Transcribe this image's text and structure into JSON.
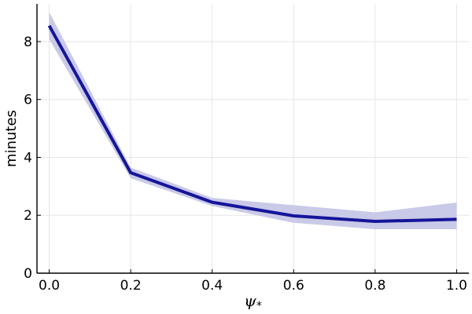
{
  "chart_data": {
    "type": "line",
    "title": "",
    "xlabel": {
      "symbol": "ψ",
      "subscript": "*"
    },
    "ylabel": "minutes",
    "xlim": [
      -0.03,
      1.03
    ],
    "ylim": [
      0,
      9.3
    ],
    "xticks": [
      0.0,
      0.2,
      0.4,
      0.6,
      0.8,
      1.0
    ],
    "xtick_labels": [
      "0.0",
      "0.2",
      "0.4",
      "0.6",
      "0.8",
      "1.0"
    ],
    "yticks": [
      0,
      2,
      4,
      6,
      8
    ],
    "ytick_labels": [
      "0",
      "2",
      "4",
      "6",
      "8"
    ],
    "grid": true,
    "legend": "none",
    "series": [
      {
        "color": "#15159a",
        "band_color": "#c9c9e8",
        "x": [
          0.0,
          0.2,
          0.4,
          0.6,
          0.8,
          1.0
        ],
        "y": [
          8.55,
          3.47,
          2.45,
          1.98,
          1.79,
          1.86
        ],
        "lower": [
          8.08,
          3.28,
          2.32,
          1.74,
          1.52,
          1.52
        ],
        "upper": [
          9.02,
          3.65,
          2.6,
          2.35,
          2.1,
          2.44
        ]
      }
    ]
  }
}
